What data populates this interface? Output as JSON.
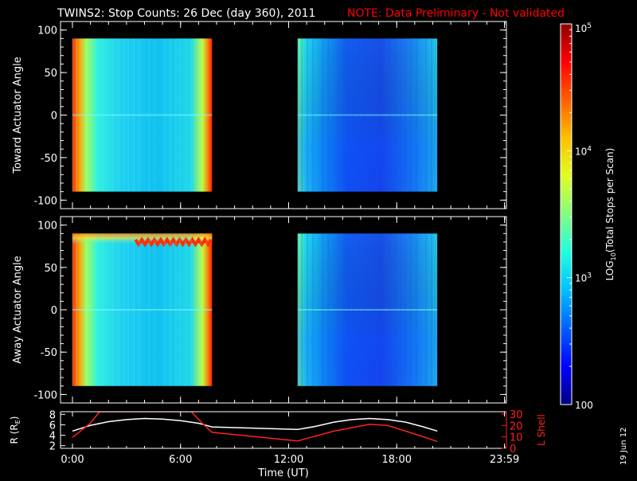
{
  "header": {
    "title": "TWINS2: Stop Counts: 26 Dec (day 360), 2011",
    "note": "NOTE: Data Preliminary - Not validated"
  },
  "stamp": "19 Jun 12",
  "colors": {
    "background": "#000000",
    "foreground": "#ffffff",
    "note": "#ff0000",
    "lshell": "#ff2020"
  },
  "chart_data": [
    {
      "type": "heatmap",
      "name": "toward",
      "ylabel": "Toward Actuator Angle",
      "ylim": [
        -110,
        110
      ],
      "yticks": [
        -100,
        -50,
        0,
        50,
        100
      ],
      "xlim": [
        0,
        24
      ],
      "data_segments_hours": [
        [
          0.0,
          7.75
        ],
        [
          12.5,
          20.25
        ]
      ],
      "data_angle_range": [
        -90,
        90
      ],
      "value_scale": "log",
      "value_range": [
        100,
        100000
      ]
    },
    {
      "type": "heatmap",
      "name": "away",
      "ylabel": "Away Actuator Angle",
      "ylim": [
        -110,
        110
      ],
      "yticks": [
        -100,
        -50,
        0,
        50,
        100
      ],
      "xlim": [
        0,
        24
      ],
      "data_segments_hours": [
        [
          0.0,
          7.75
        ],
        [
          12.5,
          20.25
        ]
      ],
      "data_angle_range": [
        -90,
        90
      ],
      "value_scale": "log",
      "value_range": [
        100,
        100000
      ]
    },
    {
      "type": "line",
      "name": "orbit",
      "xlabel": "Time (UT)",
      "xticks": [
        "0:00",
        "6:00",
        "12:00",
        "18:00",
        "23:59"
      ],
      "xtick_hours": [
        0,
        6,
        12,
        18,
        23.98
      ],
      "xlim": [
        0,
        24
      ],
      "left_axis": {
        "label": "R (R",
        "label_sub": "E",
        "label_end": ")",
        "ylim": [
          1.5,
          8.5
        ],
        "yticks": [
          "2",
          "4",
          "6",
          "8"
        ],
        "ytick_values": [
          2,
          4,
          6,
          8
        ]
      },
      "right_axis": {
        "label": "L Shell",
        "ylim": [
          0,
          32
        ],
        "yticks": [
          "0",
          "10",
          "20",
          "30"
        ],
        "ytick_values": [
          0,
          10,
          20,
          30
        ]
      },
      "series": [
        {
          "axis": "left",
          "color": "#ffffff",
          "x": [
            0,
            1,
            2,
            3,
            4,
            5,
            6,
            7,
            7.75,
            12.5,
            13.5,
            14.5,
            15.5,
            16.5,
            17.5,
            18.5,
            19.5,
            20.25
          ],
          "y": [
            4.8,
            5.9,
            6.6,
            7.0,
            7.2,
            7.1,
            6.8,
            6.3,
            5.6,
            5.1,
            5.7,
            6.5,
            7.0,
            7.2,
            7.0,
            6.5,
            5.6,
            4.8
          ]
        },
        {
          "axis": "right",
          "x": [
            0,
            1.0,
            1.5,
            6.6,
            7.2,
            7.75,
            12.5,
            14.5,
            16.5,
            17.5,
            18.5,
            19.5,
            20.25
          ],
          "y": [
            9.5,
            22,
            32,
            32,
            22,
            14,
            6.5,
            15,
            21,
            20,
            15,
            10,
            6
          ]
        }
      ]
    },
    {
      "type": "colorbar",
      "label_prefix": "LOG",
      "label_sub": "10",
      "label_suffix": "(Total Stops per Scan)",
      "scale": "log",
      "range": [
        100,
        100000
      ],
      "ticks": [
        {
          "value": 100,
          "base": "100",
          "exp": ""
        },
        {
          "value": 1000,
          "base": "10",
          "exp": "3"
        },
        {
          "value": 10000,
          "base": "10",
          "exp": "4"
        },
        {
          "value": 100000,
          "base": "10",
          "exp": "5"
        }
      ],
      "colormap": [
        "#000080",
        "#0000ff",
        "#0060ff",
        "#00c0ff",
        "#20ffe0",
        "#80ff80",
        "#e0ff20",
        "#ffc000",
        "#ff6000",
        "#ff0000",
        "#900000"
      ]
    }
  ]
}
